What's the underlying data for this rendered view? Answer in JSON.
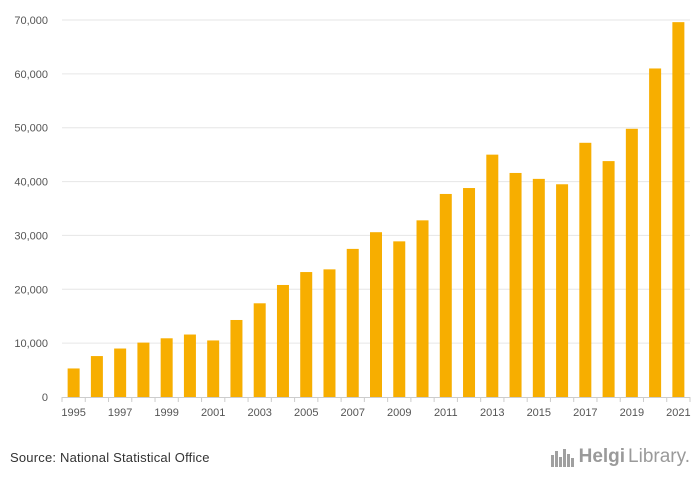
{
  "chart_data": {
    "type": "bar",
    "title": "",
    "xlabel": "",
    "ylabel": "",
    "categories": [
      "1995",
      "1996",
      "1997",
      "1998",
      "1999",
      "2000",
      "2001",
      "2002",
      "2003",
      "2004",
      "2005",
      "2006",
      "2007",
      "2008",
      "2009",
      "2010",
      "2011",
      "2012",
      "2013",
      "2014",
      "2015",
      "2016",
      "2017",
      "2018",
      "2019",
      "2020",
      "2021"
    ],
    "x_tick_labels": [
      "1995",
      "1997",
      "1999",
      "2001",
      "2003",
      "2005",
      "2007",
      "2009",
      "2011",
      "2013",
      "2015",
      "2017",
      "2019",
      "2021"
    ],
    "values": [
      5300,
      7600,
      9000,
      10100,
      10900,
      11600,
      10500,
      14300,
      17400,
      20800,
      23200,
      23700,
      27500,
      30600,
      28900,
      32800,
      37700,
      38800,
      45000,
      41600,
      40500,
      39500,
      47200,
      43800,
      49800,
      61000,
      69600
    ],
    "ylim": [
      0,
      70000
    ],
    "y_ticks": [
      0,
      10000,
      20000,
      30000,
      40000,
      50000,
      60000,
      70000
    ],
    "y_tick_labels": [
      "0",
      "10,000",
      "20,000",
      "30,000",
      "40,000",
      "50,000",
      "60,000",
      "70,000"
    ],
    "grid": true,
    "bar_color": "#F7AE00"
  },
  "footer": {
    "source": "Source: National Statistical Office",
    "logo_part1": "Helgi",
    "logo_part2": "Library."
  }
}
